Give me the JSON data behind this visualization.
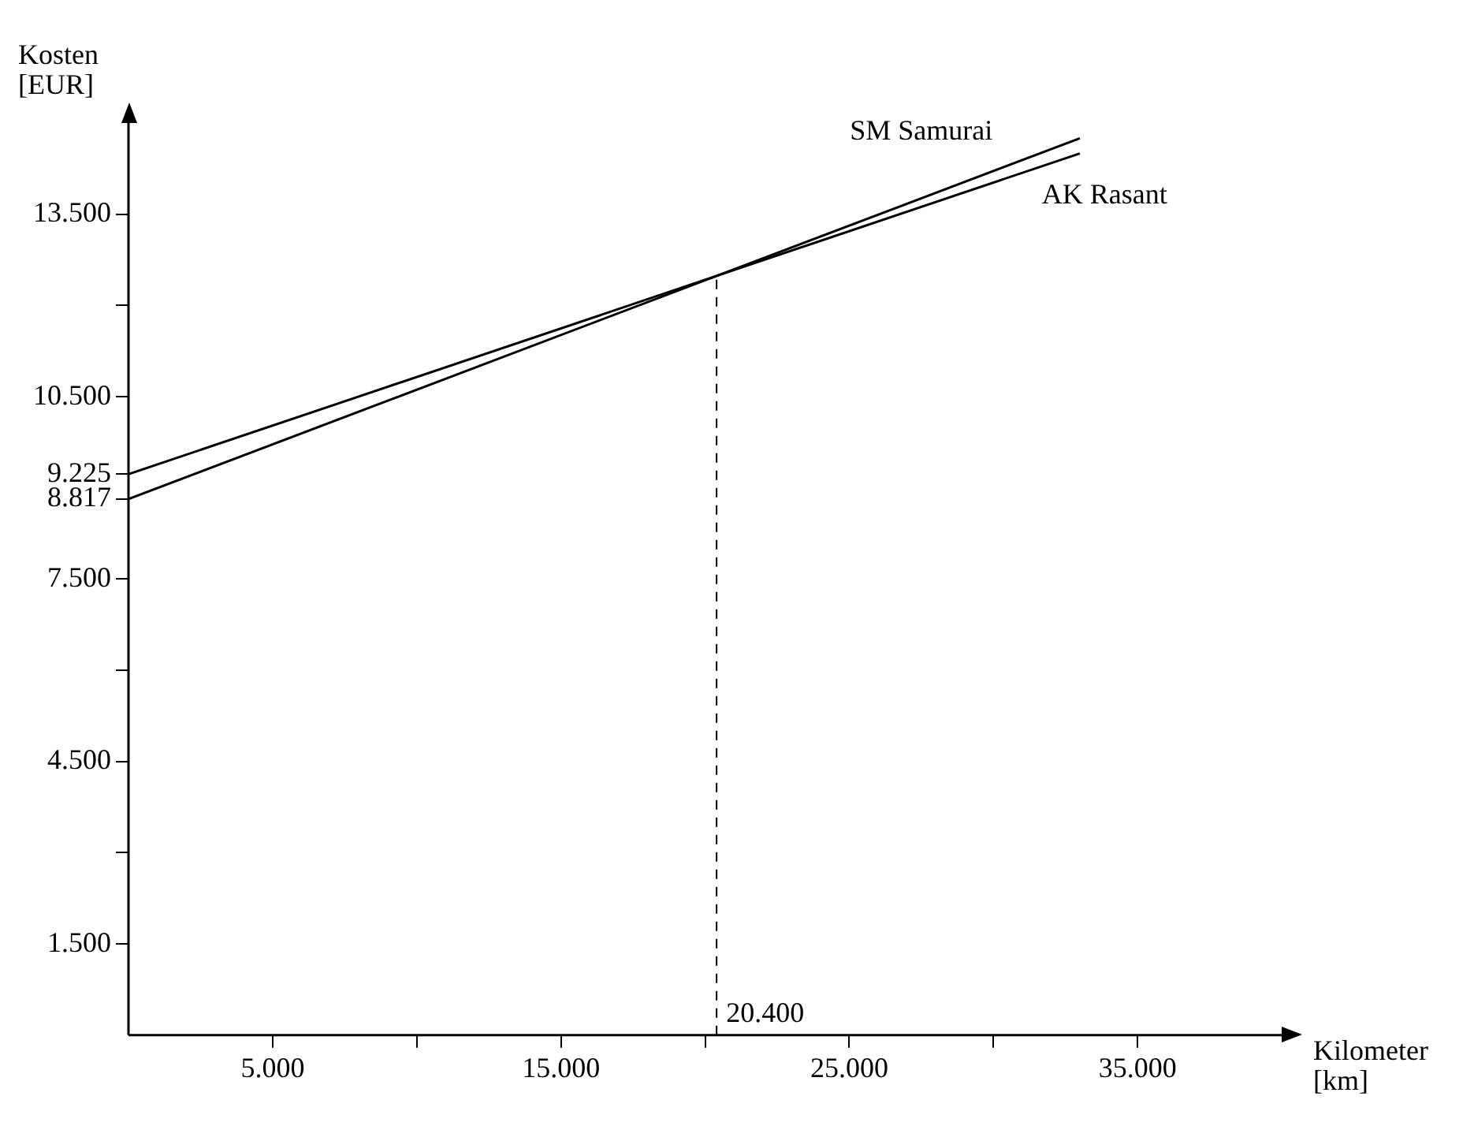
{
  "chart_data": {
    "type": "line",
    "xlabel": "Kilometer [km]",
    "ylabel": "Kosten [EUR]",
    "x": [
      0,
      33000
    ],
    "xlim": [
      0,
      40000
    ],
    "ylim": [
      0,
      15000
    ],
    "xticks": [
      {
        "value": 5000,
        "label": "5.000"
      },
      {
        "value": 10000,
        "label": null
      },
      {
        "value": 15000,
        "label": "15.000"
      },
      {
        "value": 20000,
        "label": null
      },
      {
        "value": 25000,
        "label": "25.000"
      },
      {
        "value": 30000,
        "label": null
      },
      {
        "value": 35000,
        "label": "35.000"
      }
    ],
    "yticks": [
      {
        "value": 1500,
        "label": "1.500"
      },
      {
        "value": 3000,
        "label": null
      },
      {
        "value": 4500,
        "label": "4.500"
      },
      {
        "value": 6000,
        "label": null
      },
      {
        "value": 7500,
        "label": "7.500"
      },
      {
        "value": 8817,
        "label": "8.817"
      },
      {
        "value": 9225,
        "label": "9.225"
      },
      {
        "value": 10500,
        "label": "10.500"
      },
      {
        "value": 12000,
        "label": null
      },
      {
        "value": 13500,
        "label": "13.500"
      }
    ],
    "series": [
      {
        "name": "SM Samurai",
        "color": "#000000",
        "values": [
          8817,
          14750
        ]
      },
      {
        "name": "AK Rasant",
        "color": "#000000",
        "values": [
          9225,
          14500
        ]
      }
    ],
    "ref_lines": [
      {
        "axis": "x",
        "value": 20400,
        "label": "20.400",
        "line_style": "dashed"
      }
    ],
    "grid": false,
    "legend": false,
    "marker": "none",
    "line_style": "solid"
  }
}
